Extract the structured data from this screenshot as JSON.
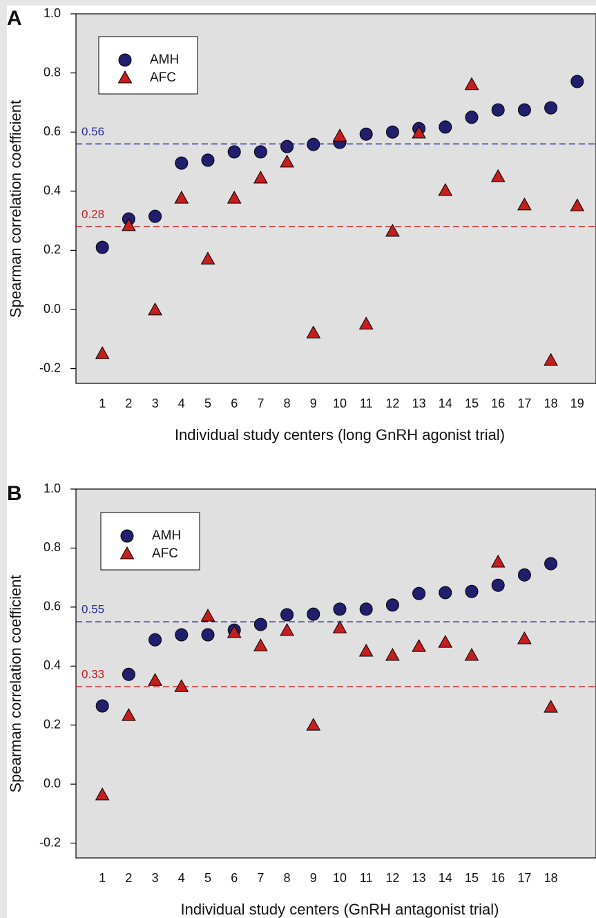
{
  "chart_data": [
    {
      "type": "scatter",
      "panel_label": "A",
      "xlabel": "Individual study centers (long GnRH agonist trial)",
      "ylabel": "Spearman correlation coefficient",
      "x": [
        1,
        2,
        3,
        4,
        5,
        6,
        7,
        8,
        9,
        10,
        11,
        12,
        13,
        14,
        15,
        16,
        17,
        18,
        19
      ],
      "series": [
        {
          "name": "AMH",
          "marker": "circle",
          "color": "#221e6e",
          "values": [
            0.21,
            0.306,
            0.315,
            0.495,
            0.505,
            0.533,
            0.533,
            0.551,
            0.558,
            0.565,
            0.593,
            0.6,
            0.612,
            0.617,
            0.65,
            0.675,
            0.675,
            0.682,
            0.771
          ]
        },
        {
          "name": "AFC",
          "marker": "triangle",
          "color": "#c41e1e",
          "values": [
            -0.15,
            0.283,
            -0.002,
            0.376,
            0.17,
            0.376,
            0.444,
            0.498,
            -0.08,
            0.586,
            -0.05,
            0.264,
            0.596,
            0.402,
            0.76,
            0.449,
            0.353,
            -0.173,
            0.35
          ]
        }
      ],
      "reference_lines": [
        {
          "value": 0.56,
          "color": "#2a2a9a"
        },
        {
          "value": 0.28,
          "color": "#c02020"
        }
      ],
      "xlim": [
        0,
        20
      ],
      "xticks": [
        1,
        2,
        3,
        4,
        5,
        6,
        7,
        8,
        9,
        10,
        11,
        12,
        13,
        14,
        15,
        16,
        17,
        18,
        19
      ],
      "ylim": [
        -0.25,
        1.0
      ],
      "yticks": [
        -0.2,
        {
          "value": 0,
          "label": "0.0"
        },
        0.2,
        0.4,
        0.6,
        0.8,
        {
          "value": 1,
          "label": "1.0"
        }
      ],
      "legend": "upper left"
    },
    {
      "type": "scatter",
      "panel_label": "B",
      "xlabel": "Individual study centers (GnRH antagonist trial)",
      "ylabel": "Spearman correlation coefficient",
      "x": [
        1,
        2,
        3,
        4,
        5,
        6,
        7,
        8,
        9,
        10,
        11,
        12,
        13,
        14,
        15,
        16,
        17,
        18
      ],
      "series": [
        {
          "name": "AMH",
          "marker": "circle",
          "color": "#221e6e",
          "values": [
            0.265,
            0.372,
            0.489,
            0.506,
            0.506,
            0.522,
            0.541,
            0.574,
            0.576,
            0.593,
            0.593,
            0.607,
            0.646,
            0.649,
            0.653,
            0.674,
            0.709,
            0.747
          ]
        },
        {
          "name": "AFC",
          "marker": "triangle",
          "color": "#c41e1e",
          "values": [
            -0.037,
            0.232,
            0.351,
            0.33,
            0.569,
            0.513,
            0.468,
            0.52,
            0.199,
            0.529,
            0.45,
            0.436,
            0.466,
            0.48,
            0.436,
            0.752,
            0.492,
            0.26
          ]
        }
      ],
      "reference_lines": [
        {
          "value": 0.55,
          "color": "#2a2a9a"
        },
        {
          "value": 0.33,
          "color": "#c02020"
        }
      ],
      "xlim": [
        0,
        20
      ],
      "xticks": [
        1,
        2,
        3,
        4,
        5,
        6,
        7,
        8,
        9,
        10,
        11,
        12,
        13,
        14,
        15,
        16,
        17,
        18
      ],
      "ylim": [
        -0.25,
        1.0
      ],
      "yticks": [
        -0.2,
        {
          "value": 0,
          "label": "0.0"
        },
        0.2,
        0.4,
        0.6,
        0.8,
        {
          "value": 1,
          "label": "1.0"
        }
      ],
      "legend": "upper left"
    }
  ]
}
